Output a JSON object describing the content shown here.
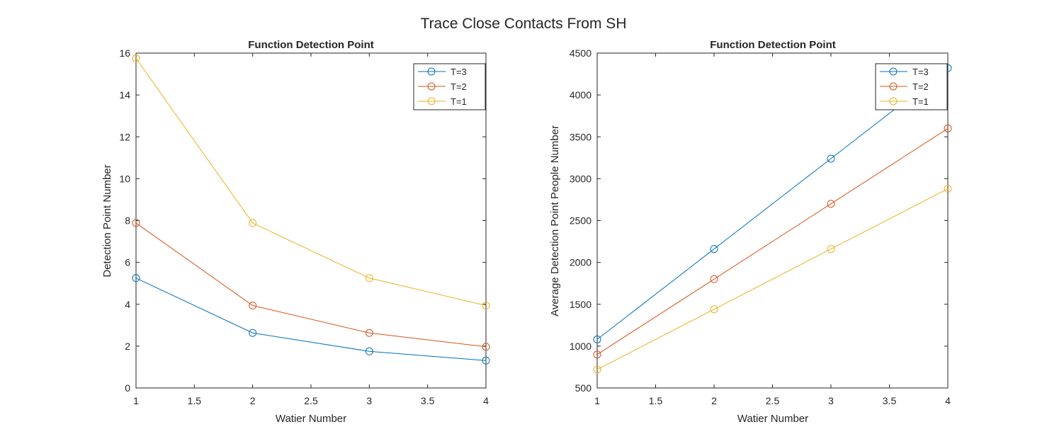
{
  "figure": {
    "suptitle": "Trace Close Contacts From SH"
  },
  "colors": {
    "T3": "#0072BD",
    "T2": "#D95319",
    "T1": "#EDB120",
    "axis": "#262626"
  },
  "chart_data": [
    {
      "type": "line",
      "title": "Function Detection Point",
      "xlabel": "Watier Number",
      "ylabel": "Detection Point Number",
      "xlim": [
        1,
        4
      ],
      "ylim": [
        0,
        16
      ],
      "xticks": [
        1,
        1.5,
        2,
        2.5,
        3,
        3.5,
        4
      ],
      "xtick_labels": [
        "1",
        "1.5",
        "2",
        "2.5",
        "3",
        "3.5",
        "4"
      ],
      "yticks": [
        0,
        2,
        4,
        6,
        8,
        10,
        12,
        14,
        16
      ],
      "ytick_labels": [
        "0",
        "2",
        "4",
        "6",
        "8",
        "10",
        "12",
        "14",
        "16"
      ],
      "legend": "top-right",
      "grid": false,
      "marker": "circle",
      "x": [
        1,
        2,
        3,
        4
      ],
      "series": [
        {
          "name": "T=3",
          "color_key": "T3",
          "values": [
            5.25,
            2.63,
            1.75,
            1.31
          ]
        },
        {
          "name": "T=2",
          "color_key": "T2",
          "values": [
            7.88,
            3.94,
            2.63,
            1.97
          ]
        },
        {
          "name": "T=1",
          "color_key": "T1",
          "values": [
            15.75,
            7.88,
            5.25,
            3.94
          ]
        }
      ]
    },
    {
      "type": "line",
      "title": "Function Detection Point",
      "xlabel": "Watier Number",
      "ylabel": "Average Detection Point People Number",
      "xlim": [
        1,
        4
      ],
      "ylim": [
        500,
        4500
      ],
      "xticks": [
        1,
        1.5,
        2,
        2.5,
        3,
        3.5,
        4
      ],
      "xtick_labels": [
        "1",
        "1.5",
        "2",
        "2.5",
        "3",
        "3.5",
        "4"
      ],
      "yticks": [
        500,
        1000,
        1500,
        2000,
        2500,
        3000,
        3500,
        4000,
        4500
      ],
      "ytick_labels": [
        "500",
        "1000",
        "1500",
        "2000",
        "2500",
        "3000",
        "3500",
        "4000",
        "4500"
      ],
      "legend": "top-right",
      "grid": false,
      "marker": "circle",
      "x": [
        1,
        2,
        3,
        4
      ],
      "series": [
        {
          "name": "T=3",
          "color_key": "T3",
          "values": [
            1080,
            2160,
            3240,
            4320
          ]
        },
        {
          "name": "T=2",
          "color_key": "T2",
          "values": [
            900,
            1800,
            2700,
            3600
          ]
        },
        {
          "name": "T=1",
          "color_key": "T1",
          "values": [
            720,
            1440,
            2160,
            2880
          ]
        }
      ]
    }
  ]
}
